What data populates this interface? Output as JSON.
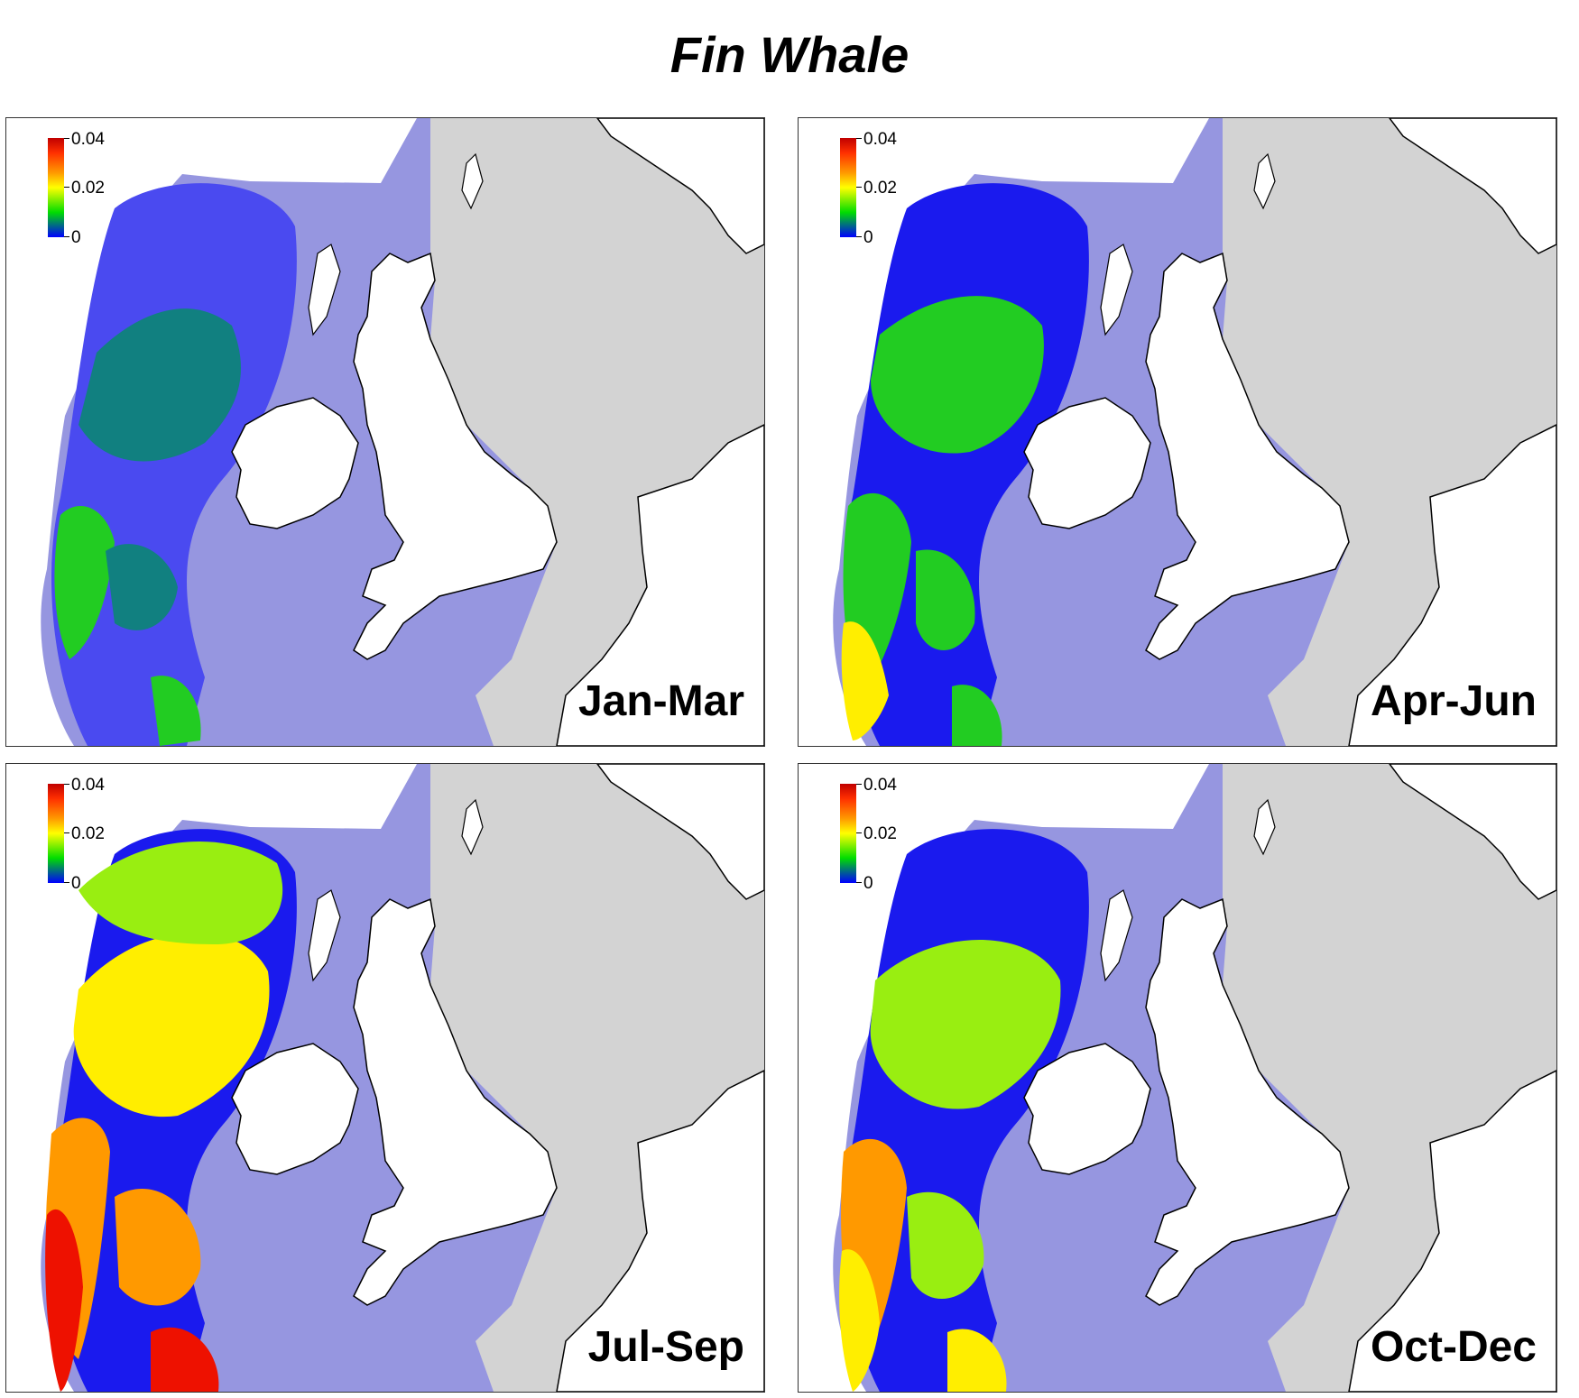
{
  "title": "Fin Whale",
  "legend": {
    "labels": [
      "0.04",
      "0.02",
      "0"
    ],
    "colors": [
      "#c00000",
      "#ff9900",
      "#ffff00",
      "#00dd00",
      "#0000ff"
    ]
  },
  "colors": {
    "land_britain": "#ffffff",
    "land_continent": "#ffffff",
    "outside_area": "#d3d3d3",
    "coast_line": "#000000",
    "low_density": "#9696e0",
    "mid_low": "#4a4af0",
    "very_low": "#1a1aee",
    "teal": "#118080",
    "green": "#22cc22",
    "lime": "#99ee11",
    "yellow": "#ffee00",
    "orange": "#ff9900",
    "red": "#ee1100"
  },
  "panels": [
    {
      "season": "Jan-Mar",
      "intensity": "low"
    },
    {
      "season": "Apr-Jun",
      "intensity": "medium"
    },
    {
      "season": "Jul-Sep",
      "intensity": "high"
    },
    {
      "season": "Oct-Dec",
      "intensity": "medium-high"
    }
  ]
}
